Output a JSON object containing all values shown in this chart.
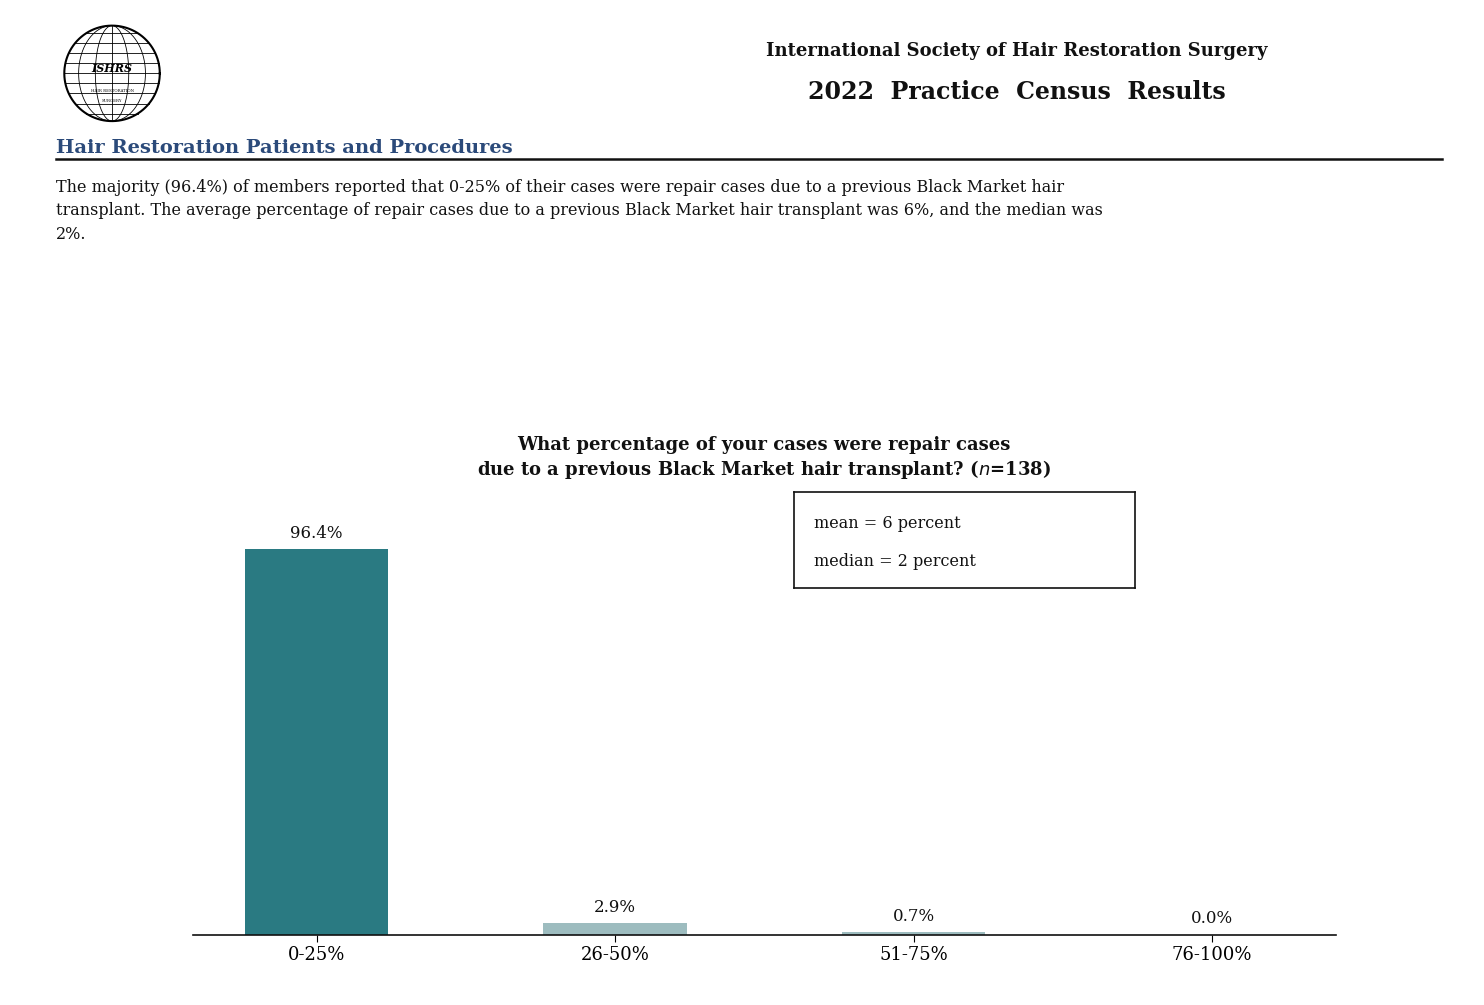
{
  "categories": [
    "0-25%",
    "26-50%",
    "51-75%",
    "76-100%"
  ],
  "values": [
    96.4,
    2.9,
    0.7,
    0.0
  ],
  "bar_color_main": "#2a7a82",
  "bar_color_small": "#9dbcbf",
  "background_color": "#ffffff",
  "chart_title_line1": "What percentage of your cases were repair cases",
  "chart_title_line2_pre": "due to a previous Black Market hair transplant? (",
  "chart_title_n": "n",
  "chart_title_line2_post": "=138)",
  "header_line1": "International Society of Hair Restoration Surgery",
  "header_line2": "2022 P",
  "header_line2b": "ractice ",
  "header_line2c": "C",
  "header_line2d": "ensus ",
  "header_line2e": "R",
  "header_line2f": "esults",
  "section_title": "H",
  "section_title2": "air ",
  "section_title3": "R",
  "section_title4": "estoration ",
  "section_title5": "P",
  "section_title6": "atients and ",
  "section_title7": "P",
  "section_title8": "rocedures",
  "para_line1": "The majority (96.4%) of members reported that 0-25% of their cases were repair cases due to a previous Black Market hair",
  "para_line2": "transplant. The average percentage of repair cases due to a previous Black Market hair transplant was 6%, and the median was",
  "para_line3": "2%.",
  "mean_label": "mean = 6 percent",
  "median_label": "median = 2 percent",
  "ylim": [
    0,
    108
  ],
  "value_labels": [
    "96.4%",
    "2.9%",
    "0.7%",
    "0.0%"
  ],
  "text_color": "#1a1a1a"
}
